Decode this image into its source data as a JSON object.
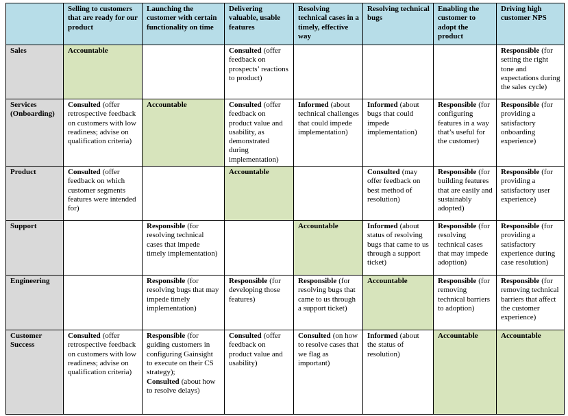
{
  "table": {
    "columns": [
      "Selling to customers that are ready for our product",
      "Launching the customer with certain functionality on time",
      "Delivering valuable, usable features",
      "Resolving technical cases in a timely, effective way",
      "Resolving technical bugs",
      "Enabling the customer to adopt the product",
      "Driving high customer NPS"
    ],
    "rows": [
      {
        "label": "Sales",
        "cells": [
          {
            "highlighted": true,
            "parts": [
              {
                "role": "Accountable"
              }
            ]
          },
          {
            "highlighted": false,
            "parts": []
          },
          {
            "highlighted": false,
            "parts": [
              {
                "role": "Consulted",
                "note": "(offer feedback on prospects’ reactions to product)"
              }
            ]
          },
          {
            "highlighted": false,
            "parts": []
          },
          {
            "highlighted": false,
            "parts": []
          },
          {
            "highlighted": false,
            "parts": []
          },
          {
            "highlighted": false,
            "parts": [
              {
                "role": "Responsible",
                "note": "(for setting the right tone and expectations during the sales cycle)"
              }
            ]
          }
        ]
      },
      {
        "label": "Services (Onboarding)",
        "cells": [
          {
            "highlighted": false,
            "parts": [
              {
                "role": "Consulted",
                "note": "(offer retrospective feedback on customers with low readiness; advise on qualification criteria)"
              }
            ]
          },
          {
            "highlighted": true,
            "parts": [
              {
                "role": "Accountable"
              }
            ]
          },
          {
            "highlighted": false,
            "parts": [
              {
                "role": "Consulted",
                "note": "(offer feedback on product value and usability, as demonstrated during implementation)"
              }
            ]
          },
          {
            "highlighted": false,
            "parts": [
              {
                "role": "Informed",
                "note": "(about technical challenges that could impede implementation)"
              }
            ]
          },
          {
            "highlighted": false,
            "parts": [
              {
                "role": "Informed",
                "note": "(about bugs that could impede implementation)"
              }
            ]
          },
          {
            "highlighted": false,
            "parts": [
              {
                "role": "Responsible",
                "note": "(for configuring features in a way that’s useful for the customer)"
              }
            ]
          },
          {
            "highlighted": false,
            "parts": [
              {
                "role": "Responsible",
                "note": "(for providing a satisfactory onboarding experience)"
              }
            ]
          }
        ]
      },
      {
        "label": "Product",
        "cells": [
          {
            "highlighted": false,
            "parts": [
              {
                "role": "Consulted",
                "note": "(offer feedback on which customer segments features were intended for)"
              }
            ]
          },
          {
            "highlighted": false,
            "parts": []
          },
          {
            "highlighted": true,
            "parts": [
              {
                "role": "Accountable"
              }
            ]
          },
          {
            "highlighted": false,
            "parts": []
          },
          {
            "highlighted": false,
            "parts": [
              {
                "role": "Consulted",
                "note": "(may offer feedback on best method of resolution)"
              }
            ]
          },
          {
            "highlighted": false,
            "parts": [
              {
                "role": "Responsible",
                "note": "(for building features that are easily and sustainably adopted)"
              }
            ]
          },
          {
            "highlighted": false,
            "parts": [
              {
                "role": "Responsible",
                "note": "(for providing a satisfactory user experience)"
              }
            ]
          }
        ]
      },
      {
        "label": "Support",
        "cells": [
          {
            "highlighted": false,
            "parts": []
          },
          {
            "highlighted": false,
            "parts": [
              {
                "role": "Responsible",
                "note": "(for resolving technical cases that impede timely implementation)"
              }
            ]
          },
          {
            "highlighted": false,
            "parts": []
          },
          {
            "highlighted": true,
            "parts": [
              {
                "role": "Accountable"
              }
            ]
          },
          {
            "highlighted": false,
            "parts": [
              {
                "role": "Informed",
                "note": "(about status of resolving bugs that came to us through a support ticket)"
              }
            ]
          },
          {
            "highlighted": false,
            "parts": [
              {
                "role": "Responsible",
                "note": "(for resolving technical cases that may impede adoption)"
              }
            ]
          },
          {
            "highlighted": false,
            "parts": [
              {
                "role": "Responsible",
                "note": "(for providing a satisfactory experience during case resolution)"
              }
            ]
          }
        ]
      },
      {
        "label": "Engineering",
        "cells": [
          {
            "highlighted": false,
            "parts": []
          },
          {
            "highlighted": false,
            "parts": [
              {
                "role": "Responsible",
                "note": "(for resolving bugs that may impede timely implementation)"
              }
            ]
          },
          {
            "highlighted": false,
            "parts": [
              {
                "role": "Responsible",
                "note": "(for developing those features)"
              }
            ]
          },
          {
            "highlighted": false,
            "parts": [
              {
                "role": "Responsible",
                "note": "(for resolving bugs that came to us through a support ticket)"
              }
            ]
          },
          {
            "highlighted": true,
            "parts": [
              {
                "role": "Accountable"
              }
            ]
          },
          {
            "highlighted": false,
            "parts": [
              {
                "role": "Responsible",
                "note": "(for removing technical barriers to adoption)"
              }
            ]
          },
          {
            "highlighted": false,
            "parts": [
              {
                "role": "Responsible",
                "note": "(for removing technical barriers that affect the customer experience)"
              }
            ]
          }
        ]
      },
      {
        "label": "Customer Success",
        "cells": [
          {
            "highlighted": false,
            "parts": [
              {
                "role": "Consulted",
                "note": "(offer retrospective feedback on customers with low readiness; advise on qualification criteria)"
              }
            ]
          },
          {
            "highlighted": false,
            "parts": [
              {
                "role": "Responsible",
                "note": "(for guiding customers in configuring Gainsight to execute on their CS strategy);"
              },
              {
                "role": "Consulted",
                "note": "(about how to resolve delays)"
              }
            ]
          },
          {
            "highlighted": false,
            "parts": [
              {
                "role": "Consulted",
                "note": "(offer feedback on product value and usability)"
              }
            ]
          },
          {
            "highlighted": false,
            "parts": [
              {
                "role": "Consulted",
                "note": "(on how to resolve cases that we flag as important)"
              }
            ]
          },
          {
            "highlighted": false,
            "parts": [
              {
                "role": "Informed",
                "note": "(about the status of resolution)"
              }
            ]
          },
          {
            "highlighted": true,
            "parts": [
              {
                "role": "Accountable"
              }
            ]
          },
          {
            "highlighted": true,
            "parts": [
              {
                "role": "Accountable"
              }
            ]
          }
        ]
      }
    ]
  }
}
